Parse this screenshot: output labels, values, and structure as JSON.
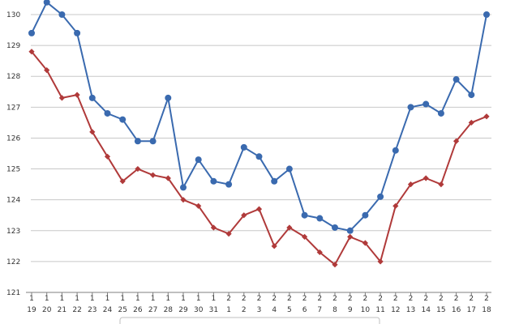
{
  "chart_data": {
    "type": "line",
    "x_month_labels": [
      "1",
      "1",
      "1",
      "1",
      "1",
      "1",
      "1",
      "1",
      "1",
      "1",
      "1",
      "1",
      "1",
      "2",
      "2",
      "2",
      "2",
      "2",
      "2",
      "2",
      "2",
      "2",
      "2",
      "2",
      "2",
      "2",
      "2",
      "2",
      "2",
      "2",
      "2"
    ],
    "x_day_labels": [
      "19",
      "20",
      "21",
      "22",
      "23",
      "24",
      "25",
      "26",
      "27",
      "28",
      "29",
      "30",
      "31",
      "1",
      "2",
      "3",
      "4",
      "5",
      "6",
      "7",
      "8",
      "9",
      "10",
      "11",
      "12",
      "13",
      "14",
      "15",
      "16",
      "17",
      "18"
    ],
    "ylim": [
      121,
      130
    ],
    "yticks": [
      "121",
      "122",
      "123",
      "124",
      "125",
      "126",
      "127",
      "128",
      "129",
      "130"
    ],
    "grid": true,
    "legend": "bottom",
    "series": [
      {
        "color": "#3a6aaf",
        "marker": "circle",
        "values": [
          129.4,
          130.4,
          130.0,
          129.4,
          127.3,
          126.8,
          126.6,
          125.9,
          125.9,
          127.3,
          124.4,
          125.3,
          124.6,
          124.5,
          125.7,
          125.4,
          124.6,
          125.0,
          123.5,
          123.4,
          123.1,
          123.0,
          123.5,
          124.1,
          125.6,
          127.0,
          127.1,
          126.8,
          127.9,
          127.4,
          130.0
        ]
      },
      {
        "color": "#b03a3a",
        "marker": "diamond",
        "values": [
          128.8,
          128.2,
          127.3,
          127.4,
          126.2,
          125.4,
          124.6,
          125.0,
          124.8,
          124.7,
          124.0,
          123.8,
          123.1,
          122.9,
          123.5,
          123.7,
          122.5,
          123.1,
          122.8,
          122.3,
          121.9,
          122.8,
          122.6,
          122.0,
          123.8,
          124.5,
          124.7,
          124.5,
          125.9,
          126.5,
          126.7
        ]
      }
    ]
  }
}
